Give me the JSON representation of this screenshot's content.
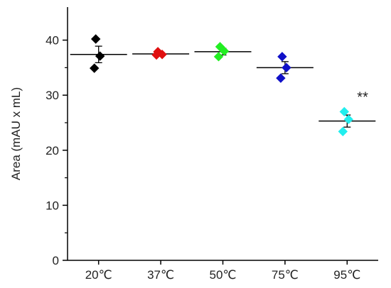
{
  "chart_data": {
    "type": "scatter",
    "title": "",
    "xlabel": "",
    "ylabel": "Area  (mAU x mL)",
    "ylim": [
      0,
      46
    ],
    "yticks": [
      0,
      10,
      20,
      30,
      40
    ],
    "categories": [
      "20℃",
      "37℃",
      "50℃",
      "75℃",
      "95℃"
    ],
    "grid": false,
    "marker": "diamond",
    "groups": [
      {
        "category": "20℃",
        "color": "#000000",
        "points": [
          40.2,
          37.1,
          34.9
        ],
        "mean": 37.4,
        "error": 1.5
      },
      {
        "category": "37℃",
        "color": "#e01010",
        "points": [
          37.9,
          37.4,
          37.3
        ],
        "mean": 37.5,
        "error": 0.2
      },
      {
        "category": "50℃",
        "color": "#22ee22",
        "points": [
          38.8,
          38.0,
          37.0
        ],
        "mean": 37.9,
        "error": 0.6
      },
      {
        "category": "75℃",
        "color": "#1010c8",
        "points": [
          37.0,
          35.0,
          33.1
        ],
        "mean": 35.0,
        "error": 1.1
      },
      {
        "category": "95℃",
        "color": "#22eeee",
        "points": [
          27.0,
          25.6,
          23.4
        ],
        "mean": 25.3,
        "error": 1.1
      }
    ],
    "annotations": [
      {
        "category": "95℃",
        "text": "**",
        "y": 29.8
      }
    ]
  }
}
